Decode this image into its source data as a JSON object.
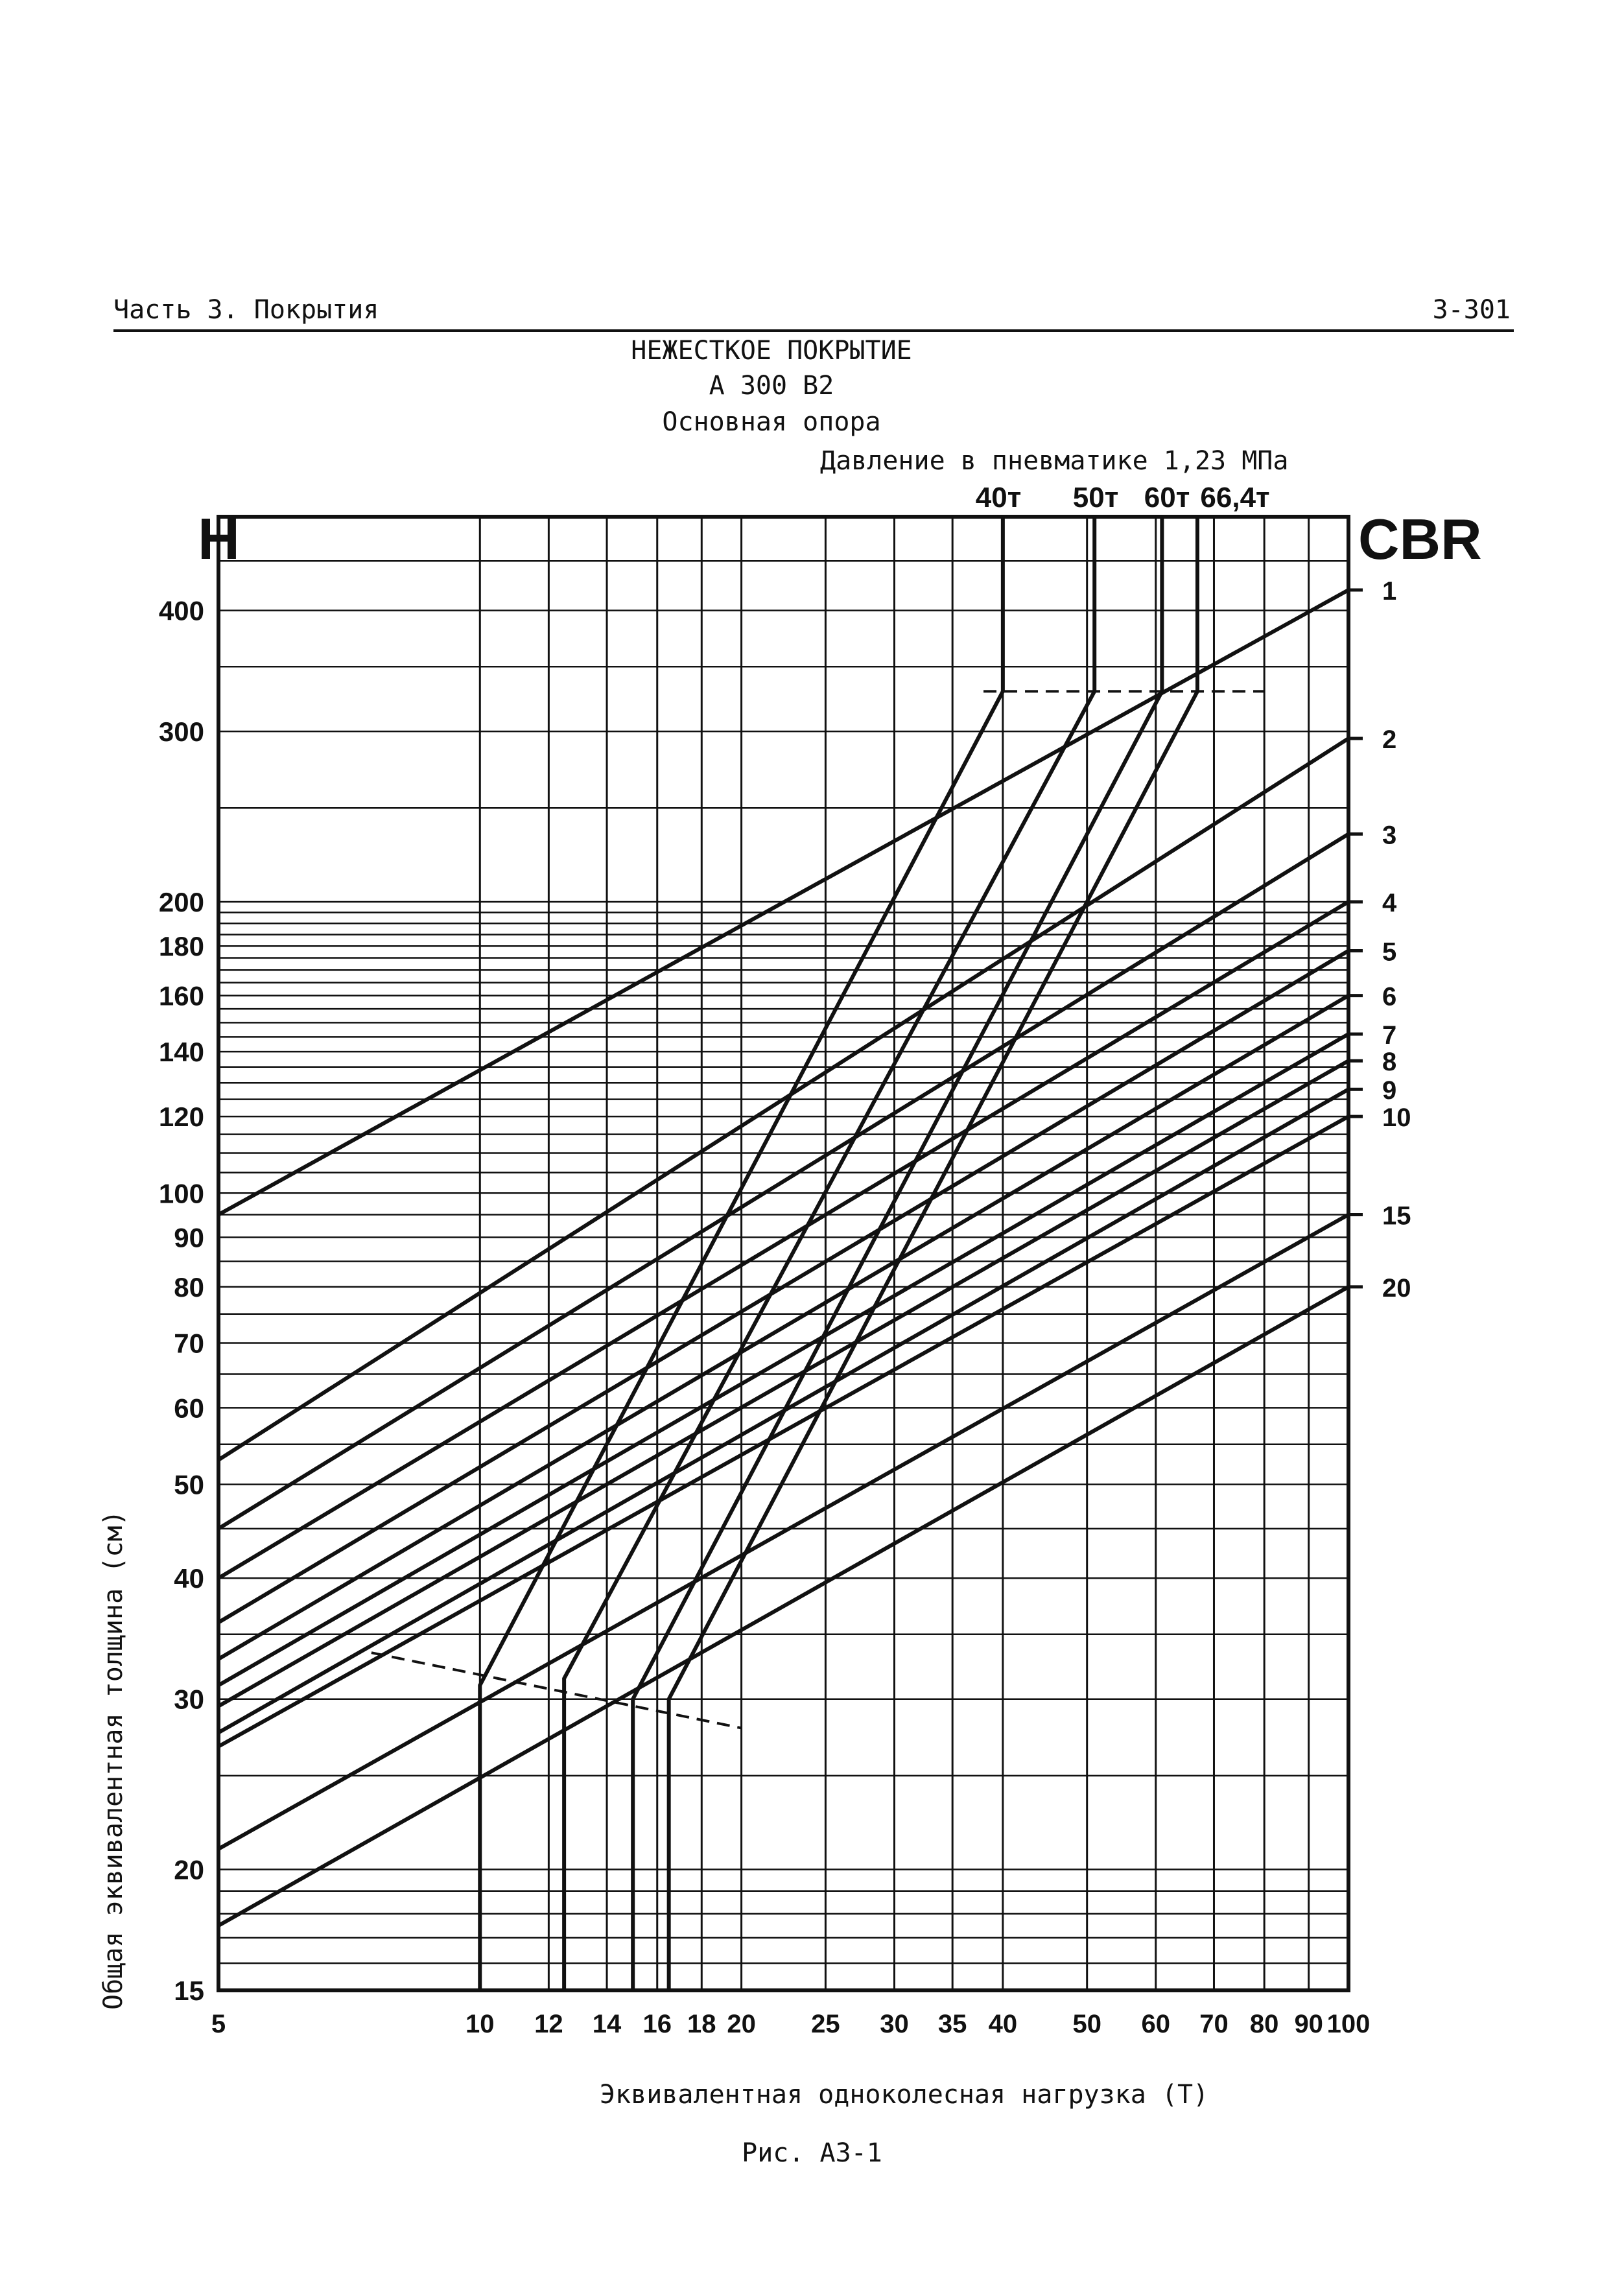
{
  "header": {
    "section": "Часть 3. Покрытия",
    "page_number": "3-301"
  },
  "titles": {
    "line1": "НЕЖЕСТКОЕ ПОКРЫТИЕ",
    "line2": "А 300 В2",
    "line3": "Основная опора",
    "line4": "Давление в пневматике 1,23 МПа"
  },
  "caption": "Рис. А3-1",
  "chart_data": {
    "type": "line",
    "xlabel": "Эквивалентная одноколесная нагрузка (Т)",
    "ylabel": "Общая эквивалентная толщина (см)",
    "x_scale": "log",
    "y_scale": "log",
    "xlim": [
      5,
      100
    ],
    "ylim": [
      15,
      500
    ],
    "left_axis_title": "H",
    "right_axis_title": "CBR",
    "x_ticks": [
      5,
      10,
      12,
      14,
      16,
      18,
      20,
      25,
      30,
      35,
      40,
      50,
      60,
      70,
      80,
      90,
      100
    ],
    "x_tick_labels": [
      "5",
      "10",
      "12",
      "14",
      "16",
      "18",
      "20",
      "25",
      "30",
      "35",
      "40",
      "50",
      "60",
      "70",
      "80",
      "90",
      "100"
    ],
    "y_ticks": [
      15,
      20,
      30,
      40,
      50,
      60,
      70,
      80,
      90,
      100,
      120,
      140,
      160,
      180,
      200,
      300,
      400
    ],
    "y_tick_labels": [
      "15",
      "20",
      "30",
      "40",
      "50",
      "60",
      "70",
      "80",
      "90",
      "100",
      "120",
      "140",
      "160",
      "180",
      "200",
      "300",
      "400"
    ],
    "cbr_lines": [
      {
        "cbr": "1",
        "x": [
          5,
          100
        ],
        "y": [
          95,
          420
        ]
      },
      {
        "cbr": "2",
        "x": [
          5,
          100
        ],
        "y": [
          53,
          295
        ]
      },
      {
        "cbr": "3",
        "x": [
          5,
          100
        ],
        "y": [
          45,
          235
        ]
      },
      {
        "cbr": "4",
        "x": [
          5,
          100
        ],
        "y": [
          40,
          200
        ]
      },
      {
        "cbr": "5",
        "x": [
          5,
          100
        ],
        "y": [
          36,
          178
        ]
      },
      {
        "cbr": "6",
        "x": [
          5,
          100
        ],
        "y": [
          33,
          160
        ]
      },
      {
        "cbr": "7",
        "x": [
          5,
          100
        ],
        "y": [
          31,
          146
        ]
      },
      {
        "cbr": "8",
        "x": [
          5,
          100
        ],
        "y": [
          29.5,
          137
        ]
      },
      {
        "cbr": "9",
        "x": [
          5,
          100
        ],
        "y": [
          27.7,
          128
        ]
      },
      {
        "cbr": "10",
        "x": [
          5,
          100
        ],
        "y": [
          26.8,
          120
        ]
      },
      {
        "cbr": "15",
        "x": [
          5,
          100
        ],
        "y": [
          21,
          95
        ]
      },
      {
        "cbr": "20",
        "x": [
          5,
          100
        ],
        "y": [
          17.5,
          80
        ]
      }
    ],
    "cbr_labels": [
      "1",
      "2",
      "3",
      "4",
      "5",
      "6",
      "7",
      "8",
      "9",
      "10",
      "15",
      "20"
    ],
    "load_curves": [
      {
        "name": "40т",
        "x": [
          10,
          10,
          40,
          40
        ],
        "y": [
          15,
          31,
          330,
          500
        ]
      },
      {
        "name": "50т",
        "x": [
          12.5,
          12.5,
          51,
          51
        ],
        "y": [
          15,
          31.5,
          330,
          500
        ]
      },
      {
        "name": "60т",
        "x": [
          15,
          15,
          61,
          61
        ],
        "y": [
          15,
          30,
          330,
          500
        ]
      },
      {
        "name": "66,4т",
        "x": [
          16.5,
          16.5,
          67,
          67
        ],
        "y": [
          15,
          30,
          330,
          500
        ]
      }
    ],
    "reference_lines": [
      {
        "x": [
          38,
          80
        ],
        "y": [
          330,
          330
        ],
        "style": "dashed"
      },
      {
        "x": [
          7.5,
          20
        ],
        "y": [
          33.5,
          28
        ],
        "style": "dashed"
      }
    ]
  }
}
